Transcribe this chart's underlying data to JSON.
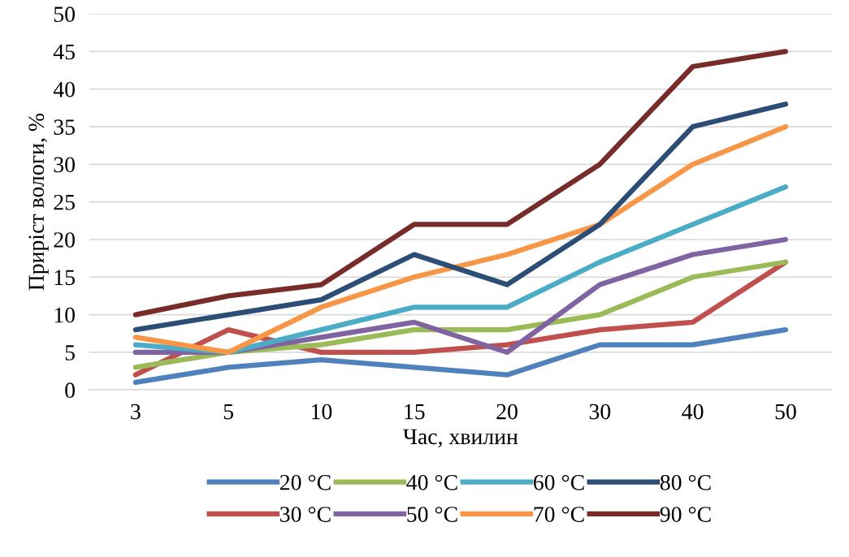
{
  "chart_data": {
    "type": "line",
    "xlabel": "Час, хвилин",
    "ylabel": "Приріст вологи, %",
    "categories": [
      "3",
      "5",
      "10",
      "15",
      "20",
      "30",
      "40",
      "50"
    ],
    "series": [
      {
        "name": "20 °C",
        "color": "#4f81bd",
        "values": [
          1,
          3,
          4,
          3,
          2,
          6,
          6,
          8
        ]
      },
      {
        "name": "30 °C",
        "color": "#c0504d",
        "values": [
          2,
          8,
          5,
          5,
          6,
          8,
          9,
          17
        ]
      },
      {
        "name": "40 °C",
        "color": "#9bbb59",
        "values": [
          3,
          5,
          6,
          8,
          8,
          10,
          15,
          17
        ]
      },
      {
        "name": "50 °C",
        "color": "#8064a2",
        "values": [
          5,
          5,
          7,
          9,
          5,
          14,
          18,
          20
        ]
      },
      {
        "name": "60 °C",
        "color": "#4bacc6",
        "values": [
          6,
          5,
          8,
          11,
          11,
          17,
          22,
          27
        ]
      },
      {
        "name": "70 °C",
        "color": "#f79646",
        "values": [
          7,
          5,
          11,
          15,
          18,
          22,
          30,
          35
        ]
      },
      {
        "name": "80 °C",
        "color": "#2c4d75",
        "values": [
          8,
          10,
          12,
          18,
          14,
          22,
          35,
          38
        ]
      },
      {
        "name": "90 °C",
        "color": "#772c2a",
        "values": [
          10,
          12.5,
          14,
          22,
          22,
          30,
          43,
          45
        ]
      }
    ],
    "ylim": [
      0,
      50
    ],
    "yticks": [
      0,
      5,
      10,
      15,
      20,
      25,
      30,
      35,
      40,
      45,
      50
    ],
    "grid": "y",
    "legend": "bottom",
    "marker": "none",
    "line_style": "solid"
  }
}
